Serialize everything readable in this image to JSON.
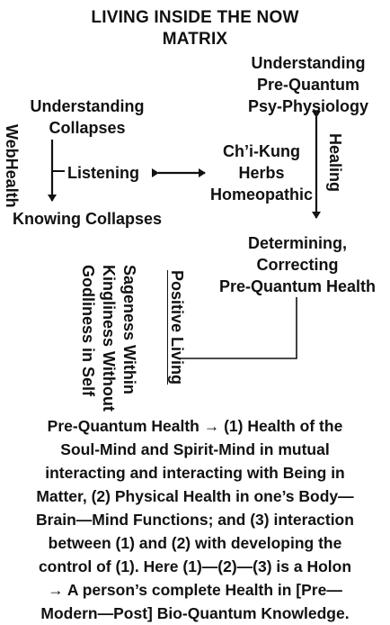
{
  "title": [
    "LIVING INSIDE THE NOW",
    "MATRIX"
  ],
  "nodes": {
    "understanding_collapses": [
      "Understanding",
      "Collapses"
    ],
    "listening": "Listening",
    "knowing_collapses": "Knowing Collapses",
    "understanding_physiology": [
      "Understanding",
      "Pre-Quantum",
      "Psy-Physiology"
    ],
    "therapies": [
      "Ch’i-Kung",
      "Herbs",
      "Homeopathic"
    ],
    "determining": [
      "Determining,",
      "Correcting",
      "Pre-Quantum Health"
    ]
  },
  "vertical_labels": {
    "webhealth": "WebHealth",
    "healing": "Healing",
    "positive_living": "Positive Living",
    "sageness": [
      "Sageness Within",
      "Kingliness Without",
      "Godliness in Self"
    ]
  },
  "caption": [
    "Pre-Quantum Health → (1) Health of the",
    "Soul-Mind and Spirit-Mind in mutual",
    "interacting and interacting with Being in",
    "Matter, (2) Physical Health in one’s Body—",
    "Brain—Mind Functions; and (3) interaction",
    "between (1) and (2) with developing the",
    "control of (1). Here (1)—(2)—(3) is a Holon",
    "→ A person’s complete Health in [Pre—",
    "Modern—Post] Bio-Quantum Knowledge."
  ]
}
